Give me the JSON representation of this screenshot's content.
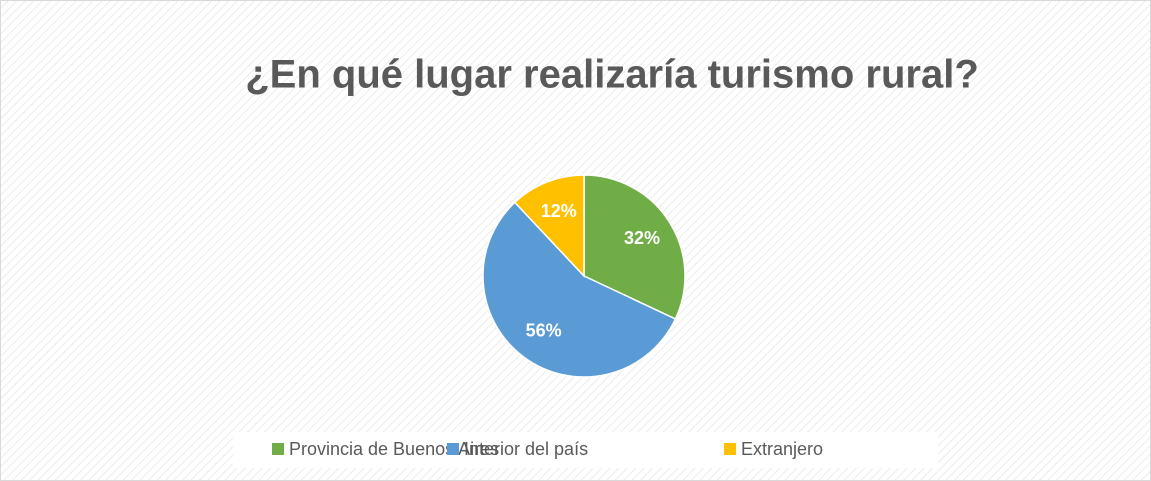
{
  "chart_data": {
    "type": "pie",
    "title": "¿En qué lugar realizaría turismo rural?",
    "categories": [
      "Provincia de Buenos Aires",
      "Interior del país",
      "Extranjero"
    ],
    "values": [
      32,
      56,
      12
    ],
    "value_labels": [
      "32%",
      "56%",
      "12%"
    ],
    "colors": [
      "#70ad47",
      "#5b9bd5",
      "#ffc000"
    ],
    "legend": "bottom"
  }
}
